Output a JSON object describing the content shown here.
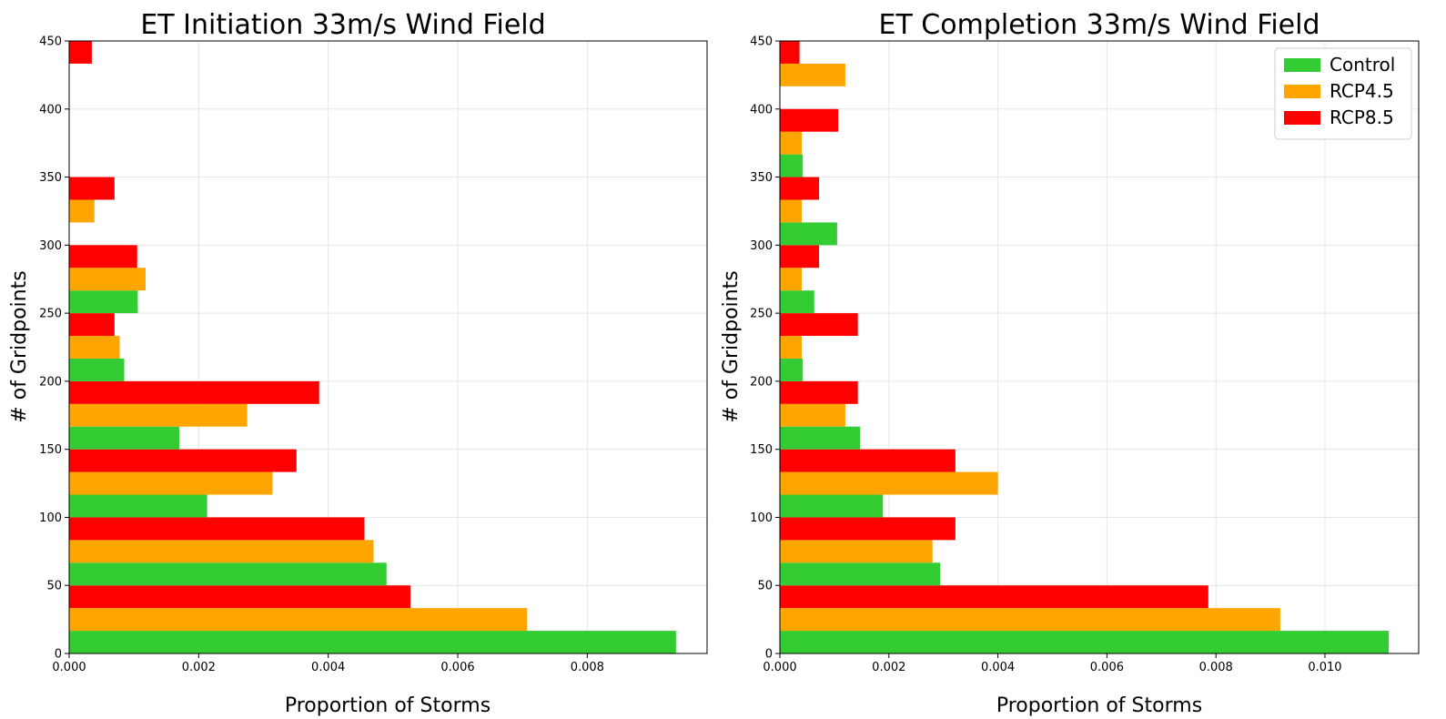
{
  "chart_data": [
    {
      "type": "bar",
      "orientation": "horizontal",
      "title": "ET Initiation 33m/s Wind Field",
      "xlabel": "Proportion of Storms",
      "ylabel": "# of Gridpoints",
      "xlim": [
        0,
        0.00985
      ],
      "ylim": [
        0,
        450
      ],
      "xticks": [
        "0.000",
        "0.002",
        "0.004",
        "0.006",
        "0.008"
      ],
      "yticks": [
        "0",
        "50",
        "100",
        "150",
        "200",
        "250",
        "300",
        "350",
        "400",
        "450"
      ],
      "grid": true,
      "categories": [
        25,
        75,
        125,
        175,
        225,
        275,
        325,
        375,
        425
      ],
      "series": [
        {
          "name": "Control",
          "values": [
            0.00937,
            0.0049,
            0.00213,
            0.0017,
            0.00085,
            0.00106,
            0,
            0,
            0
          ]
        },
        {
          "name": "RCP4.5",
          "values": [
            0.00707,
            0.0047,
            0.00314,
            0.00275,
            0.00078,
            0.00118,
            0.00039,
            0,
            0
          ]
        },
        {
          "name": "RCP8.5",
          "values": [
            0.00527,
            0.00456,
            0.00351,
            0.00386,
            0.0007,
            0.00105,
            0.0007,
            0,
            0.00035
          ]
        }
      ]
    },
    {
      "type": "bar",
      "orientation": "horizontal",
      "title": "ET Completion 33m/s Wind Field",
      "xlabel": "Proportion of Storms",
      "ylabel": "# of Gridpoints",
      "xlim": [
        0,
        0.01172
      ],
      "ylim": [
        0,
        450
      ],
      "xticks": [
        "0.000",
        "0.002",
        "0.004",
        "0.006",
        "0.008",
        "0.010"
      ],
      "yticks": [
        "0",
        "50",
        "100",
        "150",
        "200",
        "250",
        "300",
        "350",
        "400",
        "450"
      ],
      "grid": true,
      "legend": "top-right",
      "categories": [
        25,
        75,
        125,
        175,
        225,
        275,
        325,
        375,
        425
      ],
      "series": [
        {
          "name": "Control",
          "values": [
            0.01117,
            0.00294,
            0.00189,
            0.00147,
            0.00042,
            0.00063,
            0.00105,
            0.00042,
            0
          ]
        },
        {
          "name": "RCP4.5",
          "values": [
            0.00918,
            0.0028,
            0.004,
            0.0012,
            0.0004,
            0.0004,
            0.0004,
            0.0004,
            0.0012
          ]
        },
        {
          "name": "RCP8.5",
          "values": [
            0.00786,
            0.00322,
            0.00322,
            0.00143,
            0.00143,
            0.00072,
            0.00072,
            0.00107,
            0.00036
          ]
        }
      ]
    }
  ],
  "colors": {
    "Control": "#33cc33",
    "RCP4.5": "#ffa500",
    "RCP8.5": "#ff0000",
    "grid": "#e6e6e6",
    "axis": "#000000"
  }
}
